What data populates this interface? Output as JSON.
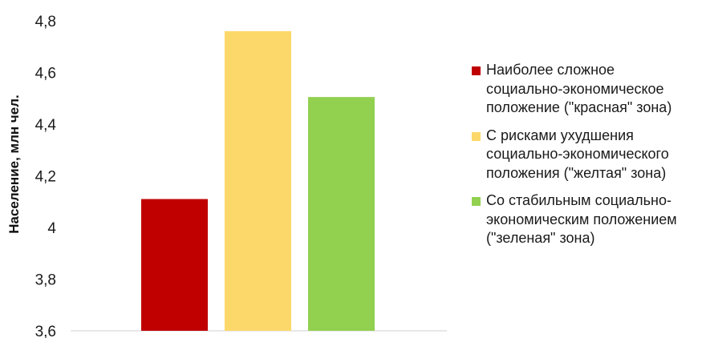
{
  "chart_data": {
    "type": "bar",
    "ylabel": "Население, млн чел.",
    "ylim": [
      3.6,
      4.8
    ],
    "yticks": [
      "3,6",
      "3,8",
      "4",
      "4,2",
      "4,4",
      "4,6",
      "4,8"
    ],
    "ytick_values": [
      3.6,
      3.8,
      4.0,
      4.2,
      4.4,
      4.6,
      4.8
    ],
    "grid": false,
    "legend_position": "right",
    "series": [
      {
        "name": "Наиболее сложное\nсоциально-экономическое\nположение (\"красная\" зона)",
        "value": 4.11,
        "color": "#c00000"
      },
      {
        "name": "С рисками ухудшения\nсоциально-экономического\nположения (\"желтая\" зона)",
        "value": 4.76,
        "color": "#fcd86a"
      },
      {
        "name": "Со стабильным социально-\nэкономическим положением\n(\"зеленая\" зона)",
        "value": 4.505,
        "color": "#92d050"
      }
    ]
  }
}
